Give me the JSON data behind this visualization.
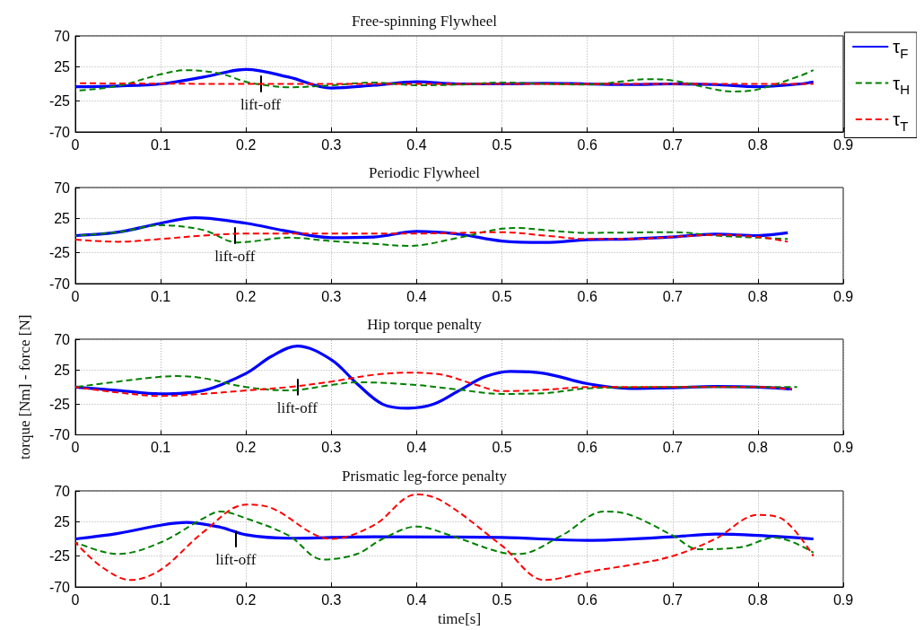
{
  "chart_data": [
    {
      "type": "line",
      "title": "Free-spinning Flywheel",
      "xlim": [
        0,
        0.9
      ],
      "xticks": [
        0,
        0.1,
        0.2,
        0.3,
        0.4,
        0.5,
        0.6,
        0.7,
        0.8,
        0.9
      ],
      "ylim": [
        -70,
        70
      ],
      "yticks": [
        -70,
        -25,
        25,
        70
      ],
      "grid": true,
      "legend": "right",
      "marker": "none",
      "ref_lines": [
        {
          "axis": "x",
          "value": 0.217,
          "label": "lift-off"
        }
      ],
      "series": [
        {
          "name": "τ$_{F}$",
          "color": "#0000ff",
          "line_style": "solid",
          "x": [
            0,
            0.05,
            0.1,
            0.15,
            0.2,
            0.25,
            0.3,
            0.35,
            0.4,
            0.45,
            0.5,
            0.55,
            0.6,
            0.65,
            0.7,
            0.75,
            0.8,
            0.85,
            0.865
          ],
          "values": [
            -4,
            -3,
            0,
            10,
            21,
            10,
            -6,
            -2,
            3,
            0,
            0,
            1,
            0,
            -1,
            0,
            -1,
            -4,
            0,
            3
          ]
        },
        {
          "name": "τ$_{H}$",
          "color": "#008000",
          "line_style": "dashed",
          "x": [
            0,
            0.05,
            0.1,
            0.13,
            0.17,
            0.2,
            0.23,
            0.25,
            0.3,
            0.35,
            0.4,
            0.45,
            0.5,
            0.55,
            0.6,
            0.65,
            0.67,
            0.7,
            0.75,
            0.77,
            0.8,
            0.85,
            0.865
          ],
          "values": [
            -10,
            -3,
            14,
            20,
            15,
            3,
            -3,
            -5,
            -2,
            2,
            -2,
            -1,
            2,
            0,
            -1,
            5,
            7,
            5,
            -8,
            -11,
            -8,
            12,
            20
          ]
        },
        {
          "name": "τ$_{T}$",
          "color": "#ff0000",
          "line_style": "dashed",
          "x": [
            0,
            0.2,
            0.4,
            0.6,
            0.865
          ],
          "values": [
            1,
            0,
            0,
            0,
            0
          ]
        }
      ]
    },
    {
      "type": "line",
      "title": "Periodic Flywheel",
      "xlim": [
        0,
        0.9
      ],
      "xticks": [
        0,
        0.1,
        0.2,
        0.3,
        0.4,
        0.5,
        0.6,
        0.7,
        0.8,
        0.9
      ],
      "ylim": [
        -70,
        70
      ],
      "yticks": [
        -70,
        -25,
        25,
        70
      ],
      "grid": true,
      "marker": "none",
      "ref_lines": [
        {
          "axis": "x",
          "value": 0.187,
          "label": "lift-off"
        }
      ],
      "series": [
        {
          "color": "#0000ff",
          "line_style": "solid",
          "x": [
            0,
            0.05,
            0.1,
            0.14,
            0.2,
            0.25,
            0.3,
            0.35,
            0.4,
            0.45,
            0.5,
            0.55,
            0.6,
            0.65,
            0.7,
            0.75,
            0.8,
            0.835
          ],
          "values": [
            0,
            5,
            18,
            26,
            18,
            6,
            -3,
            -2,
            6,
            2,
            -8,
            -10,
            -6,
            -5,
            -2,
            2,
            0,
            4
          ]
        },
        {
          "color": "#008000",
          "line_style": "dashed",
          "x": [
            0,
            0.05,
            0.1,
            0.15,
            0.19,
            0.25,
            0.3,
            0.35,
            0.39,
            0.45,
            0.5,
            0.52,
            0.55,
            0.6,
            0.7,
            0.75,
            0.8,
            0.835
          ],
          "values": [
            0,
            5,
            15,
            8,
            -10,
            -3,
            -8,
            -12,
            -15,
            -3,
            10,
            11,
            8,
            4,
            5,
            0,
            -3,
            -5
          ]
        },
        {
          "color": "#ff0000",
          "line_style": "dashed",
          "x": [
            0,
            0.05,
            0.1,
            0.15,
            0.2,
            0.3,
            0.4,
            0.5,
            0.55,
            0.6,
            0.65,
            0.7,
            0.75,
            0.8,
            0.835
          ],
          "values": [
            -6,
            -9,
            -5,
            0,
            3,
            3,
            3,
            5,
            0,
            -5,
            -5,
            -2,
            1,
            -2,
            -9
          ]
        }
      ]
    },
    {
      "type": "line",
      "title": "Hip torque penalty",
      "ylabel": "torque [Nm] - force [N]",
      "xlim": [
        0,
        0.9
      ],
      "xticks": [
        0,
        0.1,
        0.2,
        0.3,
        0.4,
        0.5,
        0.6,
        0.7,
        0.8,
        0.9
      ],
      "ylim": [
        -70,
        70
      ],
      "yticks": [
        -70,
        -25,
        25,
        70
      ],
      "grid": true,
      "marker": "none",
      "ref_lines": [
        {
          "axis": "x",
          "value": 0.26,
          "label": "lift-off"
        }
      ],
      "series": [
        {
          "color": "#0000ff",
          "line_style": "solid",
          "x": [
            0,
            0.05,
            0.1,
            0.15,
            0.2,
            0.23,
            0.26,
            0.3,
            0.33,
            0.36,
            0.39,
            0.42,
            0.45,
            0.48,
            0.51,
            0.55,
            0.6,
            0.65,
            0.7,
            0.75,
            0.8,
            0.84
          ],
          "values": [
            0,
            -5,
            -10,
            -5,
            20,
            45,
            60,
            40,
            5,
            -25,
            -31,
            -25,
            -5,
            15,
            23,
            20,
            5,
            -2,
            -1,
            1,
            0,
            -3
          ]
        },
        {
          "color": "#008000",
          "line_style": "dashed",
          "x": [
            0,
            0.05,
            0.1,
            0.12,
            0.15,
            0.2,
            0.25,
            0.3,
            0.33,
            0.4,
            0.45,
            0.5,
            0.55,
            0.6,
            0.7,
            0.846
          ],
          "values": [
            0,
            8,
            15,
            16,
            13,
            0,
            -5,
            3,
            7,
            3,
            -4,
            -10,
            -9,
            -2,
            0,
            0
          ]
        },
        {
          "color": "#ff0000",
          "line_style": "dashed",
          "x": [
            0,
            0.05,
            0.1,
            0.15,
            0.2,
            0.25,
            0.3,
            0.35,
            0.39,
            0.43,
            0.47,
            0.5,
            0.55,
            0.6,
            0.7,
            0.8,
            0.84
          ],
          "values": [
            0,
            -8,
            -13,
            -10,
            -5,
            0,
            8,
            18,
            21,
            18,
            3,
            -6,
            -4,
            0,
            0,
            0,
            -3
          ]
        }
      ]
    },
    {
      "type": "line",
      "title": "Prismatic leg-force penalty",
      "xlabel": "time[s]",
      "xlim": [
        0,
        0.9
      ],
      "xticks": [
        0,
        0.1,
        0.2,
        0.3,
        0.4,
        0.5,
        0.6,
        0.7,
        0.8,
        0.9
      ],
      "ylim": [
        -70,
        70
      ],
      "yticks": [
        -70,
        -25,
        25,
        70
      ],
      "grid": true,
      "marker": "none",
      "ref_lines": [
        {
          "axis": "x",
          "value": 0.188,
          "label": "lift-off"
        }
      ],
      "series": [
        {
          "color": "#0000ff",
          "line_style": "solid",
          "x": [
            0,
            0.05,
            0.1,
            0.13,
            0.17,
            0.2,
            0.25,
            0.3,
            0.35,
            0.5,
            0.6,
            0.7,
            0.75,
            0.8,
            0.865
          ],
          "values": [
            0,
            8,
            20,
            24,
            17,
            6,
            1,
            2,
            3,
            2,
            -2,
            3,
            7,
            5,
            0
          ]
        },
        {
          "color": "#008000",
          "line_style": "dashed",
          "x": [
            0,
            0.03,
            0.05,
            0.1,
            0.15,
            0.17,
            0.2,
            0.25,
            0.29,
            0.33,
            0.36,
            0.4,
            0.44,
            0.5,
            0.52,
            0.57,
            0.62,
            0.65,
            0.7,
            0.73,
            0.78,
            0.82,
            0.865
          ],
          "values": [
            -5,
            -18,
            -22,
            -5,
            30,
            40,
            30,
            5,
            -30,
            -22,
            0,
            18,
            5,
            -20,
            -22,
            5,
            40,
            35,
            5,
            -15,
            -12,
            2,
            -20
          ]
        },
        {
          "color": "#ff0000",
          "line_style": "dashed",
          "x": [
            0,
            0.03,
            0.065,
            0.1,
            0.15,
            0.2,
            0.23,
            0.3,
            0.35,
            0.4,
            0.43,
            0.5,
            0.55,
            0.6,
            0.65,
            0.7,
            0.75,
            0.8,
            0.83,
            0.865
          ],
          "values": [
            -5,
            -40,
            -60,
            -45,
            10,
            50,
            45,
            0,
            20,
            65,
            55,
            -10,
            -60,
            -48,
            -38,
            -25,
            0,
            35,
            28,
            -25
          ]
        }
      ]
    }
  ]
}
